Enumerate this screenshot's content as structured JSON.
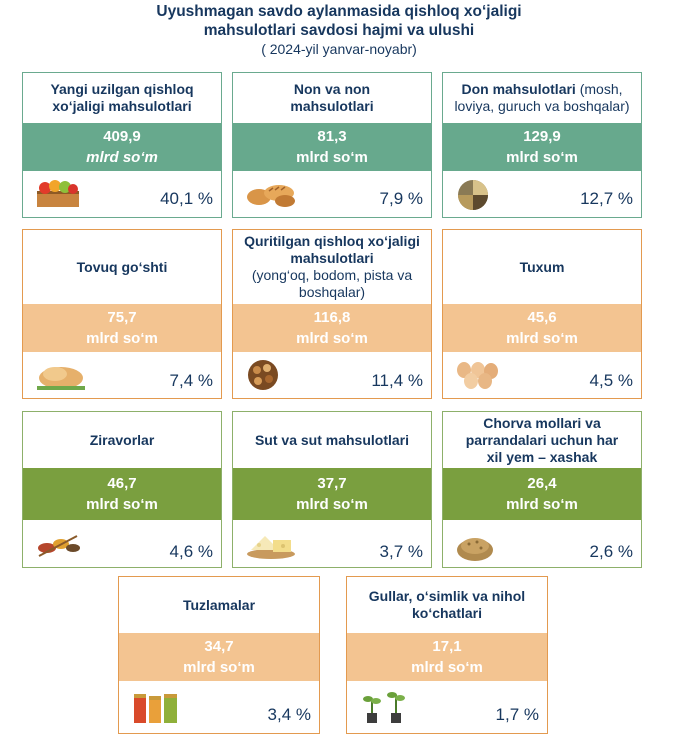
{
  "header": {
    "title_line1": "Uyushmagan savdo aylanmasida  qishloq xo‘jaligi",
    "title_line2": "mahsulotlari savdosi hajmi va ulushi",
    "subtitle": "( 2024-yil yanvar-noyabr)"
  },
  "colors": {
    "teal": "#67a98d",
    "orange": "#f3c491",
    "green": "#7a9f3f",
    "text": "#17375e"
  },
  "cards": [
    {
      "label_bold": "Yangi uzilgan qishloq xo‘jaligi mahsulotlari",
      "value": "409,9",
      "unit": "mlrd so‘m",
      "share": "40,1 %",
      "icon": "fruit-crate-icon"
    },
    {
      "label_bold": "Non va non mahsulotlari",
      "value": "81,3",
      "unit": "mlrd so‘m",
      "share": "7,9 %",
      "icon": "bread-icon"
    },
    {
      "label_bold": "Don mahsulotlari",
      "label_light": " (mosh, loviya, guruch va boshqalar)",
      "value": "129,9",
      "unit": "mlrd so‘m",
      "share": "12,7 %",
      "icon": "grains-icon"
    },
    {
      "label_bold": "Tovuq go‘shti",
      "value": "75,7",
      "unit": "mlrd so‘m",
      "share": "7,4 %",
      "icon": "roast-chicken-icon"
    },
    {
      "label_bold": "Quritilgan qishloq xo‘jaligi mahsulotlari",
      "label_light": "(yong‘oq, bodom, pista va boshqalar)",
      "value": "116,8",
      "unit": "mlrd so‘m",
      "share": "11,4 %",
      "icon": "nuts-icon"
    },
    {
      "label_bold": "Tuxum",
      "value": "45,6",
      "unit": "mlrd so‘m",
      "share": "4,5 %",
      "icon": "eggs-icon"
    },
    {
      "label_bold": "Ziravorlar",
      "value": "46,7",
      "unit": "mlrd so‘m",
      "share": "4,6 %",
      "icon": "spices-icon"
    },
    {
      "label_bold": "Sut va sut mahsulotlari",
      "value": "37,7",
      "unit": "mlrd so‘m",
      "share": "3,7 %",
      "icon": "cheese-icon"
    },
    {
      "label_bold": "Chorva mollari va parrandalari uchun har xil yem – xashak",
      "value": "26,4",
      "unit": "mlrd so‘m",
      "share": "2,6 %",
      "icon": "feed-icon"
    },
    {
      "label_bold": "Tuzlamalar",
      "value": "34,7",
      "unit": "mlrd so‘m",
      "share": "3,4 %",
      "icon": "pickle-jars-icon"
    },
    {
      "label_bold": "Gullar, o‘simlik va nihol ko‘chatlari",
      "value": "17,1",
      "unit": "mlrd so‘m",
      "share": "1,7 %",
      "icon": "seedlings-icon"
    }
  ]
}
